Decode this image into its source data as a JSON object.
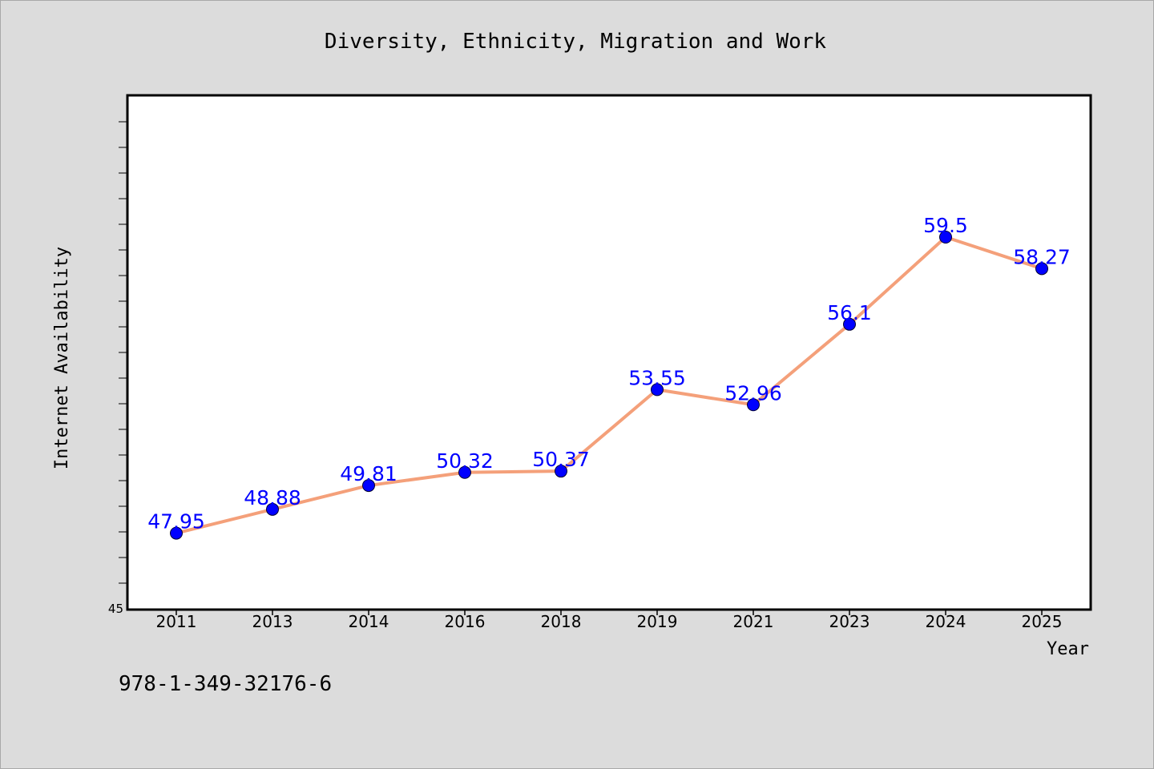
{
  "chart_data": {
    "type": "line",
    "title": "Diversity, Ethnicity, Migration and Work",
    "xlabel": "Year",
    "ylabel": "Internet Availability",
    "categories": [
      "2011",
      "2013",
      "2014",
      "2016",
      "2018",
      "2019",
      "2021",
      "2023",
      "2024",
      "2025"
    ],
    "series": [
      {
        "values": [
          47.95,
          48.88,
          49.81,
          50.32,
          50.37,
          53.55,
          52.96,
          56.1,
          59.5,
          58.27
        ],
        "labels": [
          "47.95",
          "48.88",
          "49.81",
          "50.32",
          "50.37",
          "53.55",
          "52.96",
          "56.1",
          "59.5",
          "58.27"
        ]
      }
    ],
    "ylim": [
      45,
      65
    ],
    "y_tick_labels": [
      "45"
    ],
    "line_color": "#f4a07a",
    "marker_color": "#0000ff",
    "label_color": "#0000ff",
    "plot_background": "#ffffff",
    "figure_background": "#dcdcdc",
    "grid": false,
    "legend": "none"
  },
  "footer": {
    "isbn": "978-1-349-32176-6"
  }
}
